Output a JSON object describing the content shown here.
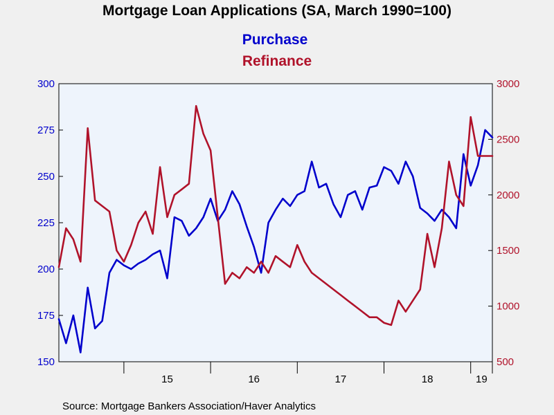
{
  "chart_data": {
    "type": "line",
    "title": "Mortgage Loan Applications (SA, March 1990=100)",
    "source": "Source:  Mortgage Bankers Association/Haver Analytics",
    "x_range": [
      "2014-04",
      "2019-04"
    ],
    "x_year_ticks": [
      "2015",
      "2016",
      "2017",
      "2018",
      "2019"
    ],
    "x_tick_labels": [
      "15",
      "16",
      "17",
      "18",
      "19"
    ],
    "y_left": {
      "range": [
        150,
        300
      ],
      "ticks": [
        "150",
        "175",
        "200",
        "225",
        "250",
        "275",
        "300"
      ],
      "color": "#0000cc"
    },
    "y_right": {
      "range": [
        500,
        3000
      ],
      "ticks": [
        "500",
        "1000",
        "1500",
        "2000",
        "2500",
        "3000"
      ],
      "color": "#b0122a"
    },
    "grid": false,
    "legend": "top-center",
    "series": [
      {
        "name": "Purchase",
        "axis": "left",
        "color": "#0000cc",
        "x": [
          "2014-04",
          "2014-05",
          "2014-06",
          "2014-07",
          "2014-08",
          "2014-09",
          "2014-10",
          "2014-11",
          "2014-12",
          "2015-01",
          "2015-02",
          "2015-03",
          "2015-04",
          "2015-05",
          "2015-06",
          "2015-07",
          "2015-08",
          "2015-09",
          "2015-10",
          "2015-11",
          "2015-12",
          "2016-01",
          "2016-02",
          "2016-03",
          "2016-04",
          "2016-05",
          "2016-06",
          "2016-07",
          "2016-08",
          "2016-09",
          "2016-10",
          "2016-11",
          "2016-12",
          "2017-01",
          "2017-02",
          "2017-03",
          "2017-04",
          "2017-05",
          "2017-06",
          "2017-07",
          "2017-08",
          "2017-09",
          "2017-10",
          "2017-11",
          "2017-12",
          "2018-01",
          "2018-02",
          "2018-03",
          "2018-04",
          "2018-05",
          "2018-06",
          "2018-07",
          "2018-08",
          "2018-09",
          "2018-10",
          "2018-11",
          "2018-12",
          "2019-01",
          "2019-02",
          "2019-03",
          "2019-04"
        ],
        "values": [
          173,
          160,
          175,
          155,
          190,
          168,
          172,
          198,
          205,
          202,
          200,
          203,
          205,
          208,
          210,
          195,
          228,
          226,
          218,
          222,
          228,
          238,
          226,
          232,
          242,
          235,
          223,
          212,
          198,
          225,
          232,
          238,
          234,
          240,
          242,
          258,
          244,
          246,
          235,
          228,
          240,
          242,
          232,
          244,
          245,
          255,
          253,
          246,
          258,
          250,
          233,
          230,
          226,
          232,
          228,
          222,
          262,
          245,
          256,
          275,
          271
        ]
      },
      {
        "name": "Refinance",
        "axis": "right",
        "color": "#b0122a",
        "x": [
          "2014-04",
          "2014-05",
          "2014-06",
          "2014-07",
          "2014-08",
          "2014-09",
          "2014-10",
          "2014-11",
          "2014-12",
          "2015-01",
          "2015-02",
          "2015-03",
          "2015-04",
          "2015-05",
          "2015-06",
          "2015-07",
          "2015-08",
          "2015-09",
          "2015-10",
          "2015-11",
          "2015-12",
          "2016-01",
          "2016-02",
          "2016-03",
          "2016-04",
          "2016-05",
          "2016-06",
          "2016-07",
          "2016-08",
          "2016-09",
          "2016-10",
          "2016-11",
          "2016-12",
          "2017-01",
          "2017-02",
          "2017-03",
          "2017-04",
          "2017-05",
          "2017-06",
          "2017-07",
          "2017-08",
          "2017-09",
          "2017-10",
          "2017-11",
          "2017-12",
          "2018-01",
          "2018-02",
          "2018-03",
          "2018-04",
          "2018-05",
          "2018-06",
          "2018-07",
          "2018-08",
          "2018-09",
          "2018-10",
          "2018-11",
          "2018-12",
          "2019-01",
          "2019-02",
          "2019-03",
          "2019-04"
        ],
        "values": [
          1350,
          1700,
          1600,
          1400,
          2600,
          1950,
          1900,
          1850,
          1500,
          1400,
          1550,
          1750,
          1850,
          1650,
          2250,
          1800,
          2000,
          2050,
          2100,
          2800,
          2550,
          2400,
          1800,
          1200,
          1300,
          1250,
          1350,
          1300,
          1400,
          1300,
          1450,
          1400,
          1350,
          1550,
          1400,
          1300,
          1250,
          1200,
          1150,
          1100,
          1050,
          1000,
          950,
          900,
          900,
          850,
          830,
          1050,
          950,
          1050,
          1150,
          1650,
          1350,
          1700,
          2300,
          2000,
          1900,
          2700,
          2350,
          2350,
          2350
        ]
      }
    ]
  }
}
